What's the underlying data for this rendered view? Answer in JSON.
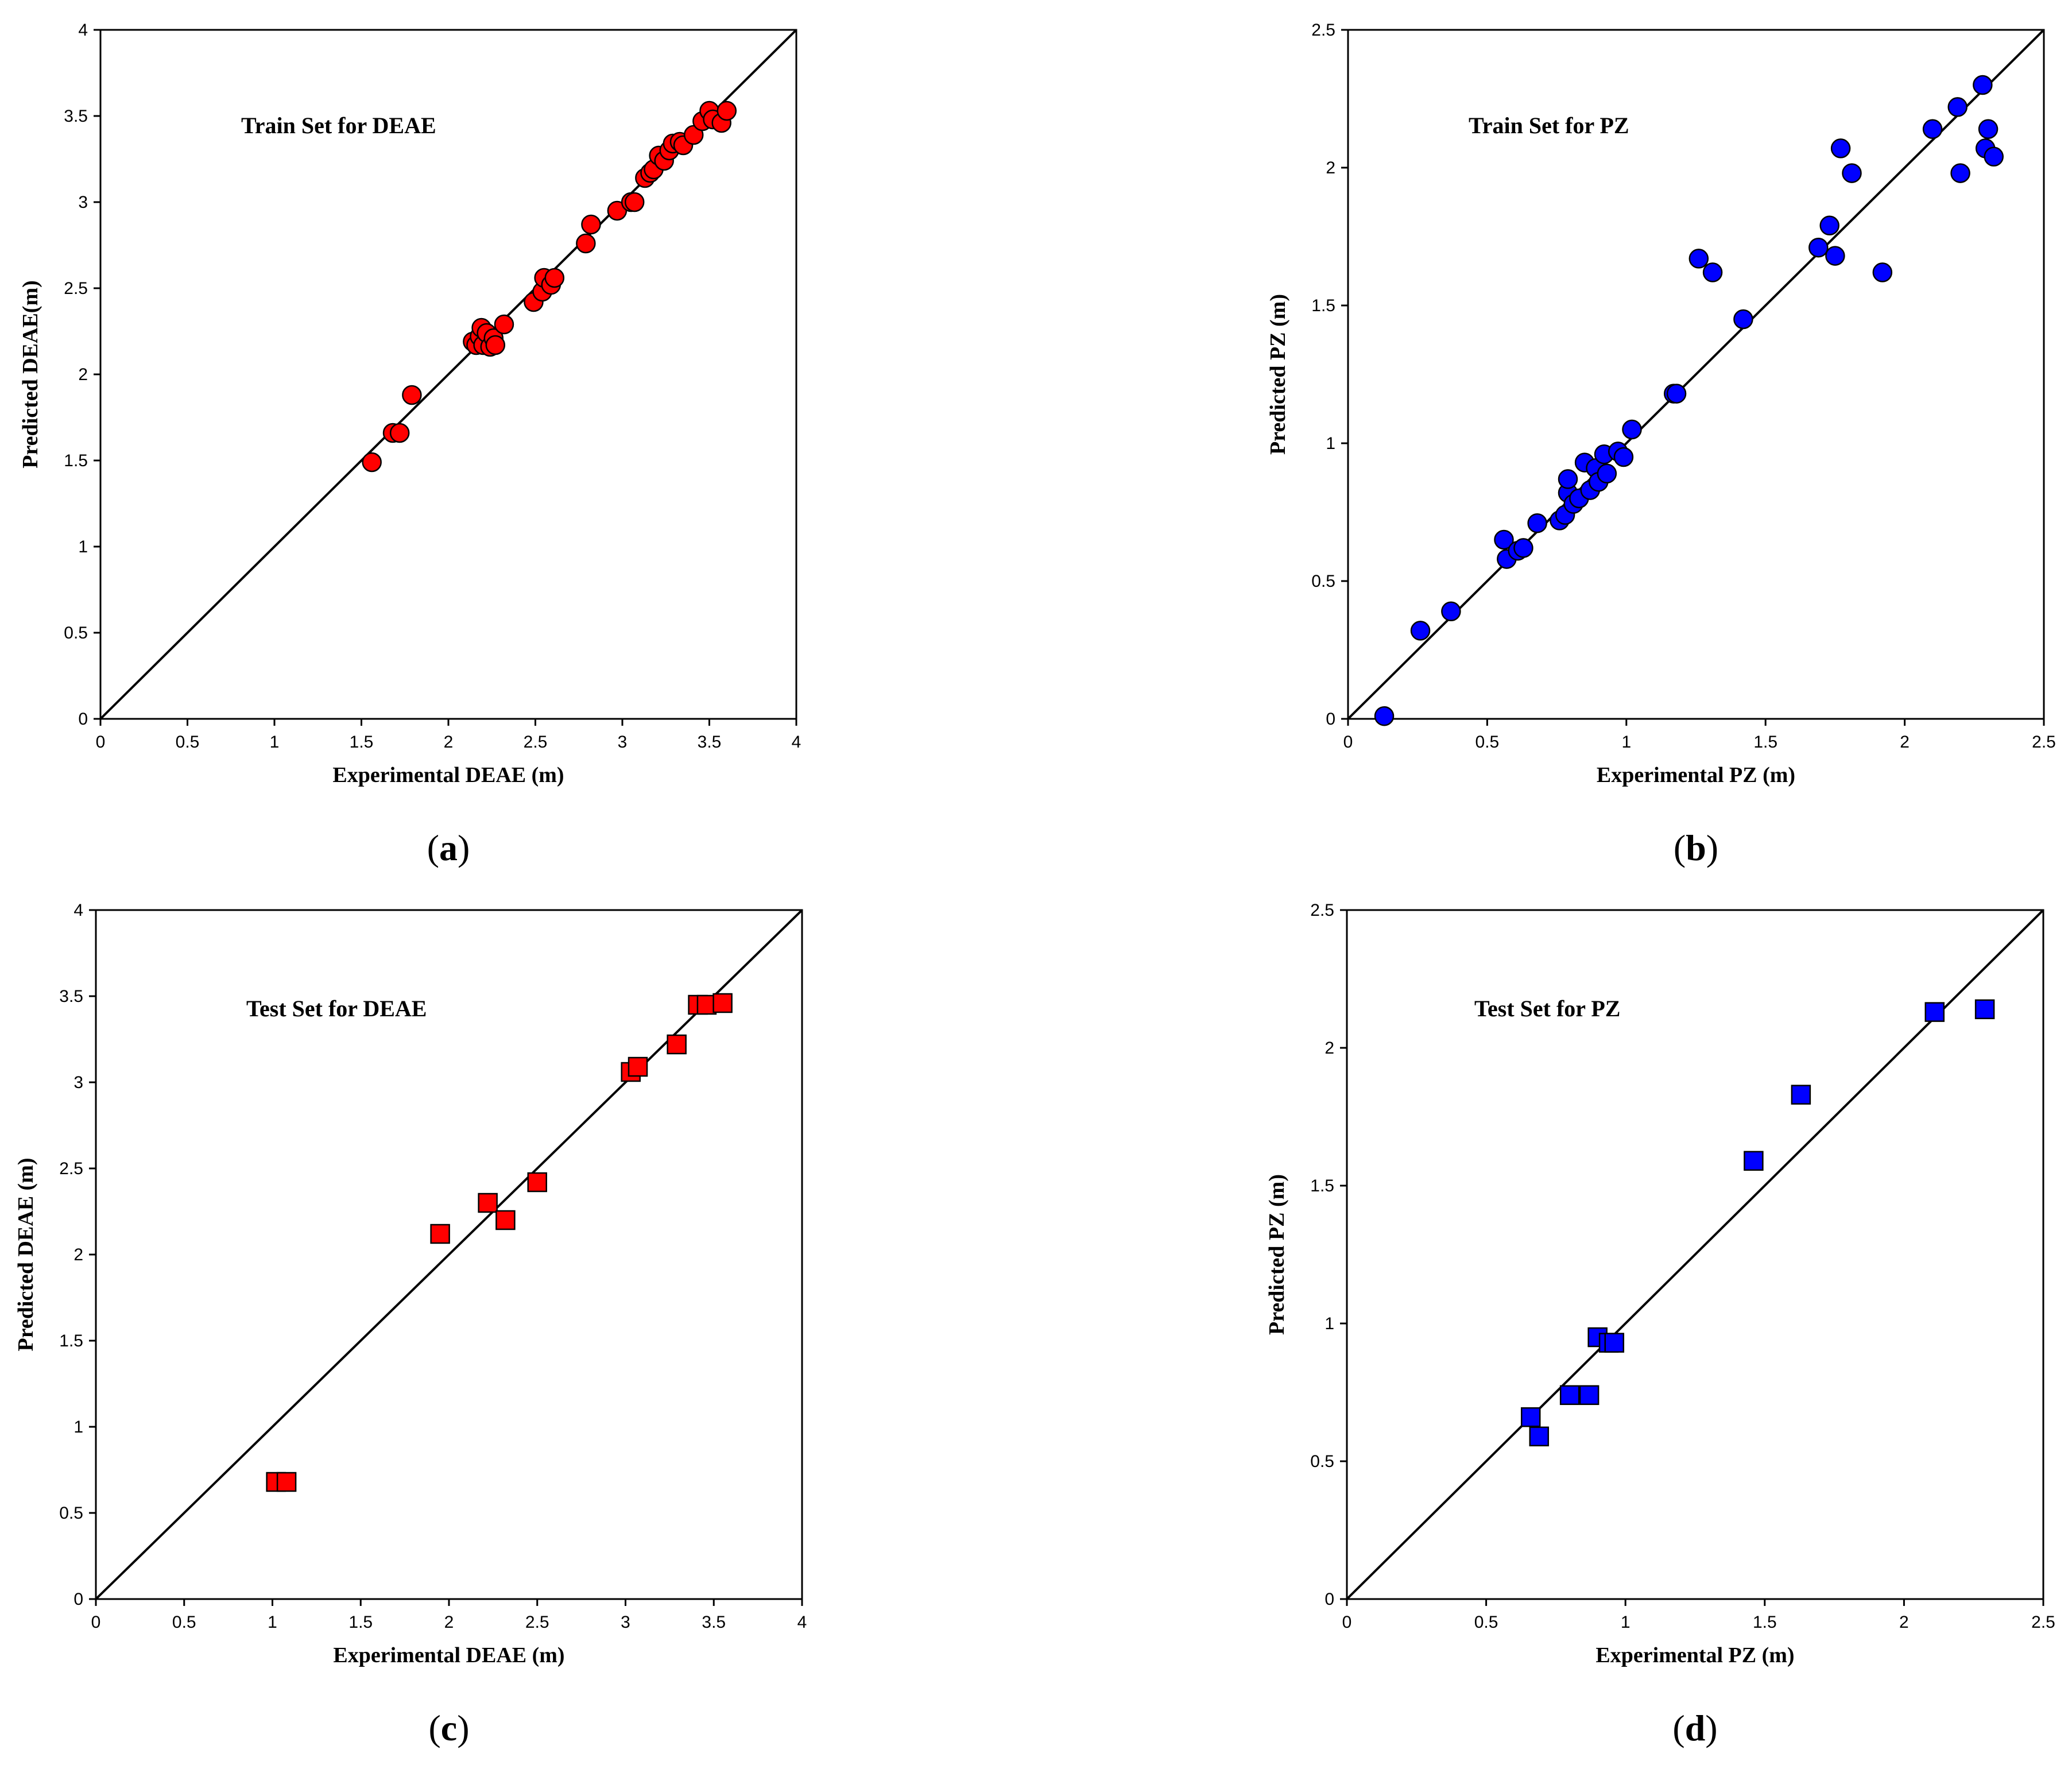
{
  "chart_data": [
    {
      "type": "scatter",
      "panel_label": "a",
      "title": "Train Set for DEAE",
      "xlabel": "Experimental  DEAE (m)",
      "ylabel": "Predicted DEAE(m)",
      "xlim": [
        0,
        4
      ],
      "ylim": [
        0,
        4
      ],
      "xticks": [
        "0",
        "0.5",
        "1",
        "1.5",
        "2",
        "2.5",
        "3",
        "3.5",
        "4"
      ],
      "yticks": [
        "0",
        "0.5",
        "1",
        "1.5",
        "2",
        "2.5",
        "3",
        "3.5",
        "4"
      ],
      "marker": "circle",
      "color": "#ff0000",
      "reference_line": "y = x",
      "points": [
        [
          1.56,
          1.49
        ],
        [
          1.68,
          1.66
        ],
        [
          1.72,
          1.66
        ],
        [
          1.79,
          1.88
        ],
        [
          2.14,
          2.19
        ],
        [
          2.16,
          2.17
        ],
        [
          2.18,
          2.22
        ],
        [
          2.19,
          2.27
        ],
        [
          2.2,
          2.17
        ],
        [
          2.22,
          2.24
        ],
        [
          2.24,
          2.16
        ],
        [
          2.26,
          2.21
        ],
        [
          2.27,
          2.17
        ],
        [
          2.32,
          2.29
        ],
        [
          2.49,
          2.42
        ],
        [
          2.54,
          2.48
        ],
        [
          2.55,
          2.56
        ],
        [
          2.59,
          2.52
        ],
        [
          2.61,
          2.56
        ],
        [
          2.79,
          2.76
        ],
        [
          2.82,
          2.87
        ],
        [
          2.97,
          2.95
        ],
        [
          3.05,
          3.0
        ],
        [
          3.07,
          3.0
        ],
        [
          3.13,
          3.14
        ],
        [
          3.16,
          3.17
        ],
        [
          3.18,
          3.19
        ],
        [
          3.21,
          3.27
        ],
        [
          3.24,
          3.24
        ],
        [
          3.27,
          3.3
        ],
        [
          3.29,
          3.34
        ],
        [
          3.33,
          3.35
        ],
        [
          3.35,
          3.33
        ],
        [
          3.41,
          3.39
        ],
        [
          3.46,
          3.47
        ],
        [
          3.5,
          3.53
        ],
        [
          3.52,
          3.48
        ],
        [
          3.57,
          3.46
        ],
        [
          3.6,
          3.53
        ]
      ]
    },
    {
      "type": "scatter",
      "panel_label": "b",
      "title": "Train Set for PZ",
      "xlabel": "Experimental  PZ (m)",
      "ylabel": "Predicted PZ (m)",
      "xlim": [
        0,
        2.5
      ],
      "ylim": [
        0,
        2.5
      ],
      "xticks": [
        "0",
        "0.5",
        "1",
        "1.5",
        "2",
        "2.5"
      ],
      "yticks": [
        "0",
        "0.5",
        "1",
        "1.5",
        "2",
        "2.5"
      ],
      "marker": "circle",
      "color": "#0000ff",
      "reference_line": "y = x",
      "points": [
        [
          0.13,
          0.01
        ],
        [
          0.26,
          0.32
        ],
        [
          0.37,
          0.39
        ],
        [
          0.56,
          0.65
        ],
        [
          0.57,
          0.58
        ],
        [
          0.61,
          0.61
        ],
        [
          0.63,
          0.62
        ],
        [
          0.68,
          0.71
        ],
        [
          0.76,
          0.72
        ],
        [
          0.78,
          0.74
        ],
        [
          0.79,
          0.82
        ],
        [
          0.79,
          0.87
        ],
        [
          0.81,
          0.78
        ],
        [
          0.83,
          0.8
        ],
        [
          0.85,
          0.93
        ],
        [
          0.87,
          0.83
        ],
        [
          0.89,
          0.91
        ],
        [
          0.9,
          0.86
        ],
        [
          0.92,
          0.96
        ],
        [
          0.93,
          0.89
        ],
        [
          0.97,
          0.97
        ],
        [
          0.99,
          0.95
        ],
        [
          1.02,
          1.05
        ],
        [
          1.17,
          1.18
        ],
        [
          1.18,
          1.18
        ],
        [
          1.26,
          1.67
        ],
        [
          1.31,
          1.62
        ],
        [
          1.42,
          1.45
        ],
        [
          1.69,
          1.71
        ],
        [
          1.73,
          1.79
        ],
        [
          1.75,
          1.68
        ],
        [
          1.77,
          2.07
        ],
        [
          1.81,
          1.98
        ],
        [
          1.92,
          1.62
        ],
        [
          2.1,
          2.14
        ],
        [
          2.19,
          2.22
        ],
        [
          2.2,
          1.98
        ],
        [
          2.28,
          2.3
        ],
        [
          2.29,
          2.07
        ],
        [
          2.3,
          2.14
        ],
        [
          2.32,
          2.04
        ]
      ]
    },
    {
      "type": "scatter",
      "panel_label": "c",
      "title": "Test Set for DEAE",
      "xlabel": "Experimental  DEAE (m)",
      "ylabel": "Predicted DEAE (m)",
      "xlim": [
        0,
        4
      ],
      "ylim": [
        0,
        4
      ],
      "xticks": [
        "0",
        "0.5",
        "1",
        "1.5",
        "2",
        "2.5",
        "3",
        "3.5",
        "4"
      ],
      "yticks": [
        "0",
        "0.5",
        "1",
        "1.5",
        "2",
        "2.5",
        "3",
        "3.5",
        "4"
      ],
      "marker": "square",
      "color": "#ff0000",
      "reference_line": "y = x",
      "points": [
        [
          1.02,
          0.68
        ],
        [
          1.08,
          0.68
        ],
        [
          1.95,
          2.12
        ],
        [
          2.22,
          2.3
        ],
        [
          2.32,
          2.2
        ],
        [
          2.5,
          2.42
        ],
        [
          3.03,
          3.06
        ],
        [
          3.07,
          3.09
        ],
        [
          3.29,
          3.22
        ],
        [
          3.41,
          3.45
        ],
        [
          3.46,
          3.45
        ],
        [
          3.55,
          3.46
        ]
      ]
    },
    {
      "type": "scatter",
      "panel_label": "d",
      "title": "Test Set for PZ",
      "xlabel": "Experimental  PZ (m)",
      "ylabel": "Predicted PZ (m)",
      "xlim": [
        0,
        2.5
      ],
      "ylim": [
        0,
        2.5
      ],
      "xticks": [
        "0",
        "0.5",
        "1",
        "1.5",
        "2",
        "2.5"
      ],
      "yticks": [
        "0",
        "0.5",
        "1",
        "1.5",
        "2",
        "2.5"
      ],
      "marker": "square",
      "color": "#0000ff",
      "reference_line": "y = x",
      "points": [
        [
          0.66,
          0.66
        ],
        [
          0.69,
          0.59
        ],
        [
          0.8,
          0.74
        ],
        [
          0.87,
          0.74
        ],
        [
          0.9,
          0.95
        ],
        [
          0.94,
          0.93
        ],
        [
          0.96,
          0.93
        ],
        [
          1.46,
          1.59
        ],
        [
          1.63,
          1.83
        ],
        [
          2.11,
          2.13
        ],
        [
          2.29,
          2.14
        ]
      ]
    }
  ]
}
